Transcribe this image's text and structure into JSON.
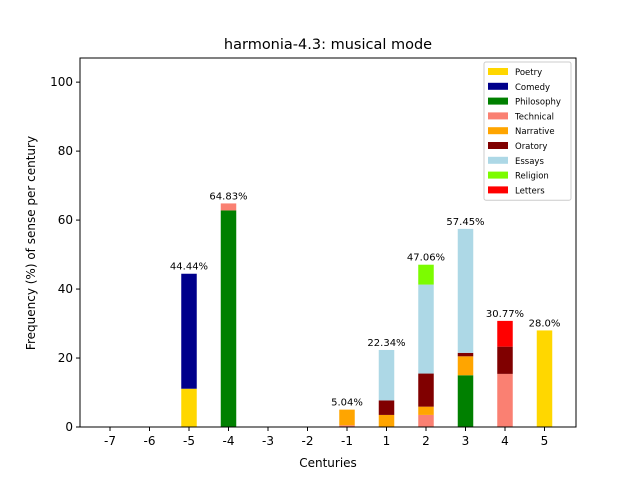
{
  "chart_data": {
    "type": "bar",
    "stacked": true,
    "title": "harmonia-4.3: musical mode",
    "xlabel": "Centuries",
    "ylabel": "Frequency (%) of sense per century",
    "ylim": [
      0,
      107
    ],
    "yticks": [
      0,
      20,
      40,
      60,
      80,
      100
    ],
    "categories": [
      "-7",
      "-6",
      "-5",
      "-4",
      "-3",
      "-2",
      "-1",
      "1",
      "2",
      "3",
      "4",
      "5"
    ],
    "legend_position": "top-right",
    "grid": false,
    "series": [
      {
        "name": "Poetry",
        "color": "#FFD700",
        "values": [
          0,
          0,
          11.1,
          0,
          0,
          0,
          0,
          0,
          0,
          0,
          0,
          28.0
        ]
      },
      {
        "name": "Comedy",
        "color": "#00008B",
        "values": [
          0,
          0,
          33.34,
          0,
          0,
          0,
          0,
          0,
          0,
          0,
          0,
          0
        ]
      },
      {
        "name": "Philosophy",
        "color": "#008000",
        "values": [
          0,
          0,
          0,
          62.8,
          0,
          0,
          0,
          0,
          0,
          15.0,
          0,
          0
        ]
      },
      {
        "name": "Technical",
        "color": "#FA8072",
        "values": [
          0,
          0,
          0,
          2.03,
          0,
          0,
          0.5,
          0,
          3.5,
          0,
          15.4,
          0
        ]
      },
      {
        "name": "Narrative",
        "color": "#FFA500",
        "values": [
          0,
          0,
          0,
          0,
          0,
          0,
          4.54,
          3.5,
          2.4,
          5.5,
          0,
          0
        ]
      },
      {
        "name": "Oratory",
        "color": "#800000",
        "values": [
          0,
          0,
          0,
          0,
          0,
          0,
          0,
          4.2,
          9.6,
          1.0,
          7.9,
          0
        ]
      },
      {
        "name": "Essays",
        "color": "#ADD8E6",
        "values": [
          0,
          0,
          0,
          0,
          0,
          0,
          0,
          14.64,
          25.8,
          35.95,
          0,
          0
        ]
      },
      {
        "name": "Religion",
        "color": "#7CFC00",
        "values": [
          0,
          0,
          0,
          0,
          0,
          0,
          0,
          0,
          5.76,
          0,
          0,
          0
        ]
      },
      {
        "name": "Letters",
        "color": "#FF0000",
        "values": [
          0,
          0,
          0,
          0,
          0,
          0,
          0,
          0,
          0,
          0,
          7.47,
          0
        ]
      }
    ],
    "bar_labels": [
      "",
      "",
      "44.44%",
      "64.83%",
      "",
      "",
      "5.04%",
      "22.34%",
      "47.06%",
      "57.45%",
      "30.77%",
      "28.0%"
    ]
  }
}
